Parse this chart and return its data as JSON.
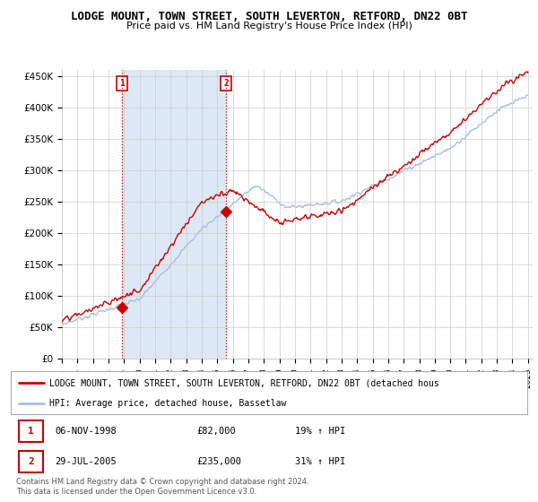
{
  "title": "LODGE MOUNT, TOWN STREET, SOUTH LEVERTON, RETFORD, DN22 0BT",
  "subtitle": "Price paid vs. HM Land Registry's House Price Index (HPI)",
  "ylim": [
    0,
    460000
  ],
  "yticks": [
    0,
    50000,
    100000,
    150000,
    200000,
    250000,
    300000,
    350000,
    400000,
    450000
  ],
  "ytick_labels": [
    "£0",
    "£50K",
    "£100K",
    "£150K",
    "£200K",
    "£250K",
    "£300K",
    "£350K",
    "£400K",
    "£450K"
  ],
  "hpi_color": "#aabcdc",
  "price_color": "#cc0000",
  "shade_color": "#dce8f5",
  "marker1_date": 1998.85,
  "marker1_price": 82000,
  "marker2_date": 2005.57,
  "marker2_price": 235000,
  "legend_line1": "LODGE MOUNT, TOWN STREET, SOUTH LEVERTON, RETFORD, DN22 0BT (detached hous",
  "legend_line2": "HPI: Average price, detached house, Bassetlaw",
  "table_row1": [
    "1",
    "06-NOV-1998",
    "£82,000",
    "19% ↑ HPI"
  ],
  "table_row2": [
    "2",
    "29-JUL-2005",
    "£235,000",
    "31% ↑ HPI"
  ],
  "footnote": "Contains HM Land Registry data © Crown copyright and database right 2024.\nThis data is licensed under the Open Government Licence v3.0.",
  "background_color": "#ffffff",
  "grid_color": "#cccccc"
}
